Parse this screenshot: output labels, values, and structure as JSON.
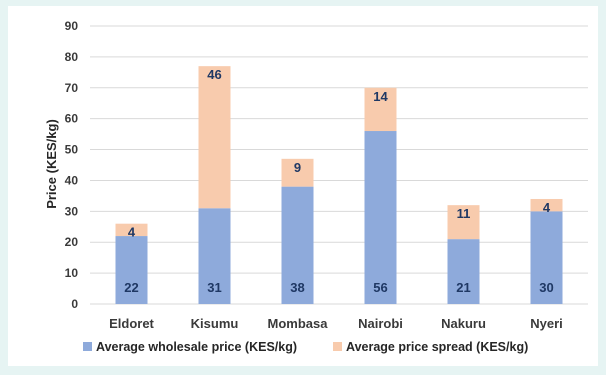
{
  "chart_data": {
    "type": "bar",
    "stacked": true,
    "categories": [
      "Eldoret",
      "Kisumu",
      "Mombasa",
      "Nairobi",
      "Nakuru",
      "Nyeri"
    ],
    "series": [
      {
        "name": "Average wholesale price (KES/kg)",
        "values": [
          22,
          31,
          38,
          56,
          21,
          30
        ],
        "color": "#8eaadb"
      },
      {
        "name": "Average price spread (KES/kg)",
        "values": [
          4,
          46,
          9,
          14,
          11,
          4
        ],
        "color": "#f8cbad"
      }
    ],
    "title": "",
    "xlabel": "",
    "ylabel": "Price (KES/kg)",
    "ylim": [
      0,
      90
    ],
    "yticks": [
      0,
      10,
      20,
      30,
      40,
      50,
      60,
      70,
      80,
      90
    ],
    "grid": true,
    "legend": "bottom",
    "value_label_color": "#1f3864",
    "grid_color": "#d9d9d9"
  }
}
